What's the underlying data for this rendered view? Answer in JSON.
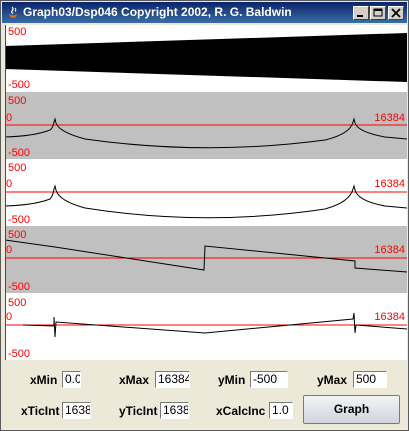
{
  "window": {
    "title": "Graph03/Dsp046 Copyright 2002, R. G. Baldwin",
    "icon": "java-icon",
    "buttons": [
      "minimize-icon",
      "maximize-icon",
      "close-icon"
    ]
  },
  "plots": [
    {
      "y_max_label": "500",
      "y_min_label": "-500",
      "zero_label": "",
      "x_max_label": ""
    },
    {
      "y_max_label": "500",
      "y_min_label": "-500",
      "zero_label": "0",
      "x_max_label": "16384"
    },
    {
      "y_max_label": "500",
      "y_min_label": "-500",
      "zero_label": "0",
      "x_max_label": "16384"
    },
    {
      "y_max_label": "500",
      "y_min_label": "-500",
      "zero_label": "0",
      "x_max_label": "16384"
    },
    {
      "y_max_label": "500",
      "y_min_label": "-500",
      "zero_label": "0",
      "x_max_label": "16384"
    }
  ],
  "controls": {
    "xmin_label": "xMin",
    "xmin_value": "0.0",
    "xmax_label": "xMax",
    "xmax_value": "16384",
    "ymin_label": "yMin",
    "ymin_value": "-500",
    "ymax_label": "yMax",
    "ymax_value": "500",
    "xticint_label": "xTicInt",
    "xticint_value": "1638",
    "yticint_label": "yTicInt",
    "yticint_value": "1638",
    "xcalcinc_label": "xCalcInc",
    "xcalcinc_value": "1.0",
    "graph_button": "Graph"
  },
  "colors": {
    "axis": "#ff0000",
    "curve": "#000000",
    "gray_band": "#c0c0c0",
    "title_bar": "#0a246a"
  }
}
